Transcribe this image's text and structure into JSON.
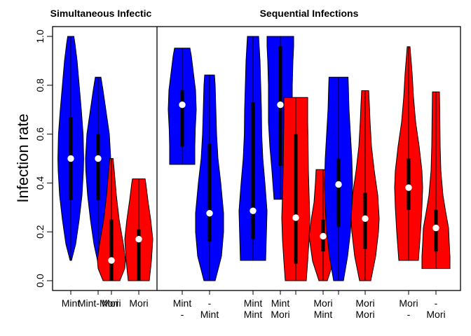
{
  "chart_data": {
    "type": "violin",
    "ylabel": "Infection rate",
    "ylim": [
      0,
      1
    ],
    "yticks": [
      "0.0",
      "0.2",
      "0.4",
      "0.6",
      "0.8",
      "1.0"
    ],
    "colors": {
      "blue": "#0000ff",
      "red": "#ff0000"
    },
    "panels": [
      {
        "title": "Simultaneous Infectic",
        "violins": [
          {
            "label1": "Mint",
            "label2": "",
            "color": "blue",
            "min": 0.083,
            "max": 1.0,
            "q1": 0.33,
            "q3": 0.67,
            "median": 0.5,
            "shape": [
              [
                0.083,
                0.05
              ],
              [
                0.15,
                0.35
              ],
              [
                0.25,
                0.6
              ],
              [
                0.35,
                0.8
              ],
              [
                0.45,
                0.9
              ],
              [
                0.5,
                0.92
              ],
              [
                0.6,
                0.88
              ],
              [
                0.7,
                0.75
              ],
              [
                0.8,
                0.6
              ],
              [
                0.9,
                0.45
              ],
              [
                0.97,
                0.3
              ],
              [
                1.0,
                0.22
              ]
            ]
          },
          {
            "label1": "Mint-Mori",
            "label2": "",
            "color": "blue",
            "min": 0.083,
            "max": 0.833,
            "q1": 0.33,
            "q3": 0.6,
            "median": 0.5,
            "shape": [
              [
                0.083,
                0.05
              ],
              [
                0.15,
                0.3
              ],
              [
                0.25,
                0.55
              ],
              [
                0.35,
                0.75
              ],
              [
                0.45,
                0.88
              ],
              [
                0.5,
                0.9
              ],
              [
                0.6,
                0.8
              ],
              [
                0.7,
                0.55
              ],
              [
                0.78,
                0.35
              ],
              [
                0.833,
                0.2
              ]
            ]
          },
          {
            "label1": "Mori",
            "label2": "",
            "color": "red",
            "min": 0.0,
            "max": 0.5,
            "q1": 0.0,
            "q3": 0.25,
            "median": 0.083,
            "shape": [
              [
                0.0,
                0.6
              ],
              [
                0.05,
                0.95
              ],
              [
                0.083,
                1.0
              ],
              [
                0.15,
                0.85
              ],
              [
                0.25,
                0.55
              ],
              [
                0.35,
                0.35
              ],
              [
                0.45,
                0.2
              ],
              [
                0.5,
                0.12
              ]
            ]
          },
          {
            "label1": "Mori",
            "label2": "",
            "color": "red",
            "min": 0.0,
            "max": 0.417,
            "q1": 0.0,
            "q3": 0.21,
            "median": 0.17,
            "shape": [
              [
                0.0,
                0.75
              ],
              [
                0.08,
                0.9
              ],
              [
                0.17,
                1.0
              ],
              [
                0.25,
                0.85
              ],
              [
                0.33,
                0.65
              ],
              [
                0.4,
                0.5
              ],
              [
                0.417,
                0.45
              ]
            ]
          }
        ]
      },
      {
        "title": "Sequential Infections",
        "violins": [
          {
            "label1": "Mint",
            "label2": "-",
            "color": "blue",
            "min": 0.476,
            "max": 0.952,
            "q1": 0.55,
            "q3": 0.78,
            "median": 0.72,
            "shape": [
              [
                0.476,
                0.9
              ],
              [
                0.55,
                0.9
              ],
              [
                0.62,
                0.93
              ],
              [
                0.7,
                1.0
              ],
              [
                0.78,
                0.95
              ],
              [
                0.85,
                0.8
              ],
              [
                0.92,
                0.65
              ],
              [
                0.952,
                0.55
              ]
            ]
          },
          {
            "label1": "-",
            "label2": "Mint",
            "color": "blue",
            "min": 0.0,
            "max": 0.842,
            "q1": 0.16,
            "q3": 0.56,
            "median": 0.276,
            "shape": [
              [
                0.0,
                0.4
              ],
              [
                0.1,
                0.85
              ],
              [
                0.2,
                1.0
              ],
              [
                0.276,
                1.0
              ],
              [
                0.4,
                0.8
              ],
              [
                0.5,
                0.6
              ],
              [
                0.6,
                0.5
              ],
              [
                0.7,
                0.45
              ],
              [
                0.8,
                0.4
              ],
              [
                0.842,
                0.35
              ]
            ]
          },
          {
            "label1": "Mint",
            "label2": "Mint",
            "color": "blue",
            "min": 0.083,
            "max": 1.0,
            "q1": 0.17,
            "q3": 0.73,
            "median": 0.286,
            "shape": [
              [
                0.083,
                0.9
              ],
              [
                0.18,
                0.95
              ],
              [
                0.286,
                1.0
              ],
              [
                0.4,
                0.85
              ],
              [
                0.5,
                0.7
              ],
              [
                0.6,
                0.62
              ],
              [
                0.7,
                0.6
              ],
              [
                0.8,
                0.55
              ],
              [
                0.9,
                0.5
              ],
              [
                1.0,
                0.4
              ]
            ]
          },
          {
            "label1": "Mint",
            "label2": "Mori",
            "color": "blue",
            "min": 0.333,
            "max": 1.0,
            "q1": 0.47,
            "q3": 0.96,
            "median": 0.72,
            "shape": [
              [
                0.333,
                0.45
              ],
              [
                0.45,
                0.6
              ],
              [
                0.55,
                0.75
              ],
              [
                0.65,
                0.85
              ],
              [
                0.72,
                0.85
              ],
              [
                0.8,
                0.85
              ],
              [
                0.9,
                0.9
              ],
              [
                0.96,
                0.95
              ],
              [
                1.0,
                0.95
              ]
            ]
          },
          {
            "label1": "",
            "label2": "",
            "color": "red",
            "min": 0.0,
            "max": 0.75,
            "q1": 0.07,
            "q3": 0.6,
            "median": 0.258,
            "shape": [
              [
                0.0,
                0.75
              ],
              [
                0.08,
                0.85
              ],
              [
                0.17,
                0.95
              ],
              [
                0.258,
                1.0
              ],
              [
                0.35,
                0.95
              ],
              [
                0.45,
                0.9
              ],
              [
                0.55,
                0.88
              ],
              [
                0.65,
                0.85
              ],
              [
                0.75,
                0.85
              ]
            ]
          },
          {
            "label1": "Mori",
            "label2": "Mint",
            "color": "red",
            "min": 0.0,
            "max": 0.455,
            "q1": 0.12,
            "q3": 0.25,
            "median": 0.182,
            "shape": [
              [
                0.0,
                0.3
              ],
              [
                0.08,
                0.75
              ],
              [
                0.14,
                0.9
              ],
              [
                0.182,
                1.0
              ],
              [
                0.25,
                0.85
              ],
              [
                0.32,
                0.65
              ],
              [
                0.4,
                0.55
              ],
              [
                0.455,
                0.5
              ]
            ]
          },
          {
            "label1": "",
            "label2": "",
            "color": "blue",
            "min": 0.0,
            "max": 0.833,
            "q1": 0.22,
            "q3": 0.5,
            "median": 0.394,
            "shape": [
              [
                0.0,
                0.35
              ],
              [
                0.1,
                0.65
              ],
              [
                0.2,
                0.85
              ],
              [
                0.3,
                0.95
              ],
              [
                0.394,
                1.0
              ],
              [
                0.5,
                0.95
              ],
              [
                0.6,
                0.85
              ],
              [
                0.7,
                0.75
              ],
              [
                0.8,
                0.7
              ],
              [
                0.833,
                0.68
              ]
            ]
          },
          {
            "label1": "Mori",
            "label2": "Mori",
            "color": "red",
            "min": 0.0,
            "max": 0.778,
            "q1": 0.13,
            "q3": 0.36,
            "median": 0.254,
            "shape": [
              [
                0.0,
                0.4
              ],
              [
                0.1,
                0.75
              ],
              [
                0.2,
                0.95
              ],
              [
                0.254,
                1.0
              ],
              [
                0.35,
                0.9
              ],
              [
                0.45,
                0.65
              ],
              [
                0.55,
                0.45
              ],
              [
                0.65,
                0.35
              ],
              [
                0.72,
                0.3
              ],
              [
                0.778,
                0.25
              ]
            ]
          },
          {
            "label1": "Mori",
            "label2": "-",
            "color": "red",
            "min": 0.083,
            "max": 0.958,
            "q1": 0.29,
            "q3": 0.5,
            "median": 0.381,
            "shape": [
              [
                0.083,
                0.7
              ],
              [
                0.2,
                0.85
              ],
              [
                0.3,
                0.95
              ],
              [
                0.381,
                1.0
              ],
              [
                0.45,
                0.95
              ],
              [
                0.55,
                0.75
              ],
              [
                0.65,
                0.5
              ],
              [
                0.75,
                0.35
              ],
              [
                0.85,
                0.25
              ],
              [
                0.958,
                0.1
              ]
            ]
          },
          {
            "label1": "-",
            "label2": "Mori",
            "color": "red",
            "min": 0.05,
            "max": 0.773,
            "q1": 0.12,
            "q3": 0.29,
            "median": 0.216,
            "shape": [
              [
                0.05,
                1.0
              ],
              [
                0.1,
                1.0
              ],
              [
                0.15,
                0.95
              ],
              [
                0.216,
                0.9
              ],
              [
                0.28,
                0.7
              ],
              [
                0.35,
                0.5
              ],
              [
                0.45,
                0.35
              ],
              [
                0.55,
                0.3
              ],
              [
                0.65,
                0.28
              ],
              [
                0.773,
                0.25
              ]
            ]
          }
        ]
      }
    ]
  }
}
